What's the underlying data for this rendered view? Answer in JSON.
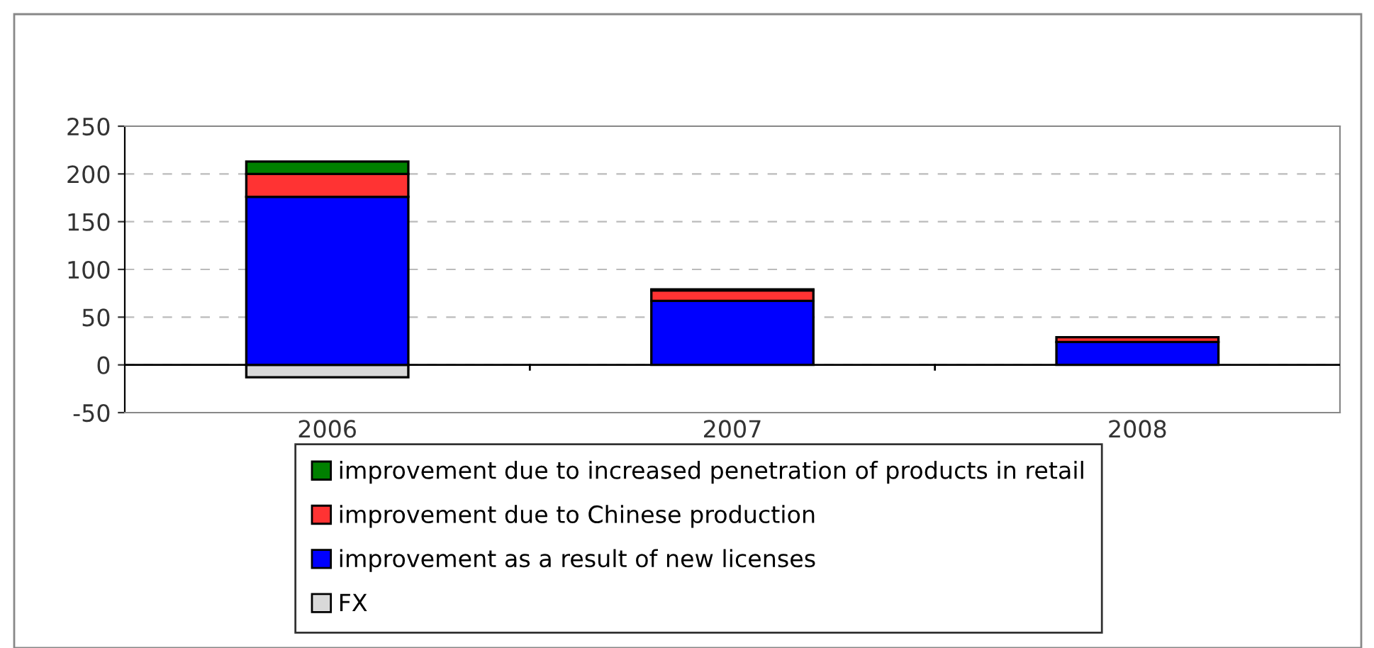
{
  "chart_data": {
    "type": "bar",
    "stacked": true,
    "categories": [
      "2006",
      "2007",
      "2008"
    ],
    "series": [
      {
        "name": "FX",
        "color": "#d9d9d9",
        "values": [
          -13,
          null,
          null
        ]
      },
      {
        "name": "improvement as a result of new licenses",
        "color": "#0000ff",
        "values": [
          176,
          67,
          24
        ]
      },
      {
        "name": "improvement due to Chinese production",
        "color": "#ff3333",
        "values": [
          24,
          11,
          5
        ]
      },
      {
        "name": "improvement due to increased penetration of products in retail",
        "color": "#008000",
        "values": [
          13,
          1,
          null
        ]
      }
    ],
    "ylim": [
      -50,
      250
    ],
    "yticks": [
      -50,
      0,
      50,
      100,
      150,
      200,
      250
    ],
    "grid": "y",
    "legend": "bottom"
  }
}
